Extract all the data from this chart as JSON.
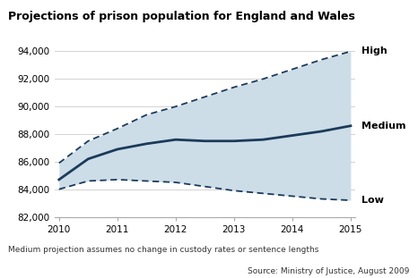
{
  "title": "Projections of prison population for England and Wales",
  "years": [
    2010,
    2010.5,
    2011,
    2011.5,
    2012,
    2012.5,
    2013,
    2013.5,
    2014,
    2014.5,
    2015
  ],
  "high": [
    85900,
    87500,
    88400,
    89400,
    90000,
    90700,
    91400,
    92000,
    92700,
    93400,
    94000
  ],
  "medium": [
    84700,
    86200,
    86900,
    87300,
    87600,
    87500,
    87500,
    87600,
    87900,
    88200,
    88600
  ],
  "low": [
    84000,
    84600,
    84700,
    84600,
    84500,
    84200,
    83900,
    83700,
    83500,
    83300,
    83200
  ],
  "ylim": [
    82000,
    94500
  ],
  "yticks": [
    82000,
    84000,
    86000,
    88000,
    90000,
    92000,
    94000
  ],
  "ytick_labels": [
    "82,000",
    "84,000",
    "86,000",
    "88,000",
    "90,000",
    "92,000",
    "94,000"
  ],
  "xticks": [
    2010,
    2011,
    2012,
    2013,
    2014,
    2015
  ],
  "line_color": "#1c3a5a",
  "fill_color": "#ccdde8",
  "fill_alpha": 1.0,
  "label_high": "High",
  "label_medium": "Medium",
  "label_low": "Low",
  "footnote1": "Medium projection assumes no change in custody rates or sentence lengths",
  "footnote2": "Source: Ministry of Justice, August 2009",
  "background_color": "#ffffff",
  "grid_color": "#cccccc"
}
